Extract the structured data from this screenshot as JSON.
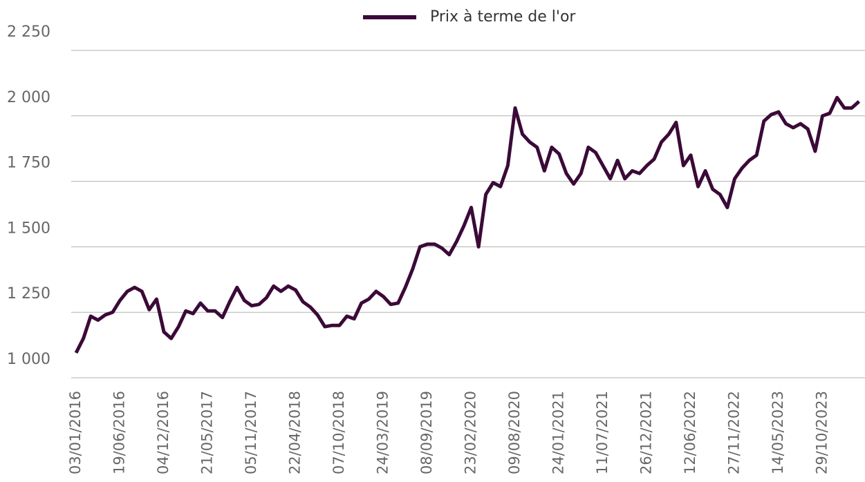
{
  "chart_data": {
    "type": "line",
    "categories": [
      "03/01/2016",
      null,
      null,
      null,
      null,
      null,
      "19/06/2016",
      null,
      null,
      null,
      null,
      null,
      "04/12/2016",
      null,
      null,
      null,
      null,
      null,
      "21/05/2017",
      null,
      null,
      null,
      null,
      null,
      "05/11/2017",
      null,
      null,
      null,
      null,
      null,
      "22/04/2018",
      null,
      null,
      null,
      null,
      null,
      "07/10/2018",
      null,
      null,
      null,
      null,
      null,
      "24/03/2019",
      null,
      null,
      null,
      null,
      null,
      "08/09/2019",
      null,
      null,
      null,
      null,
      null,
      "23/02/2020",
      null,
      null,
      null,
      null,
      null,
      "09/08/2020",
      null,
      null,
      null,
      null,
      null,
      "24/01/2021",
      null,
      null,
      null,
      null,
      null,
      "11/07/2021",
      null,
      null,
      null,
      null,
      null,
      "26/12/2021",
      null,
      null,
      null,
      null,
      null,
      "12/06/2022",
      null,
      null,
      null,
      null,
      null,
      "27/11/2022",
      null,
      null,
      null,
      null,
      null,
      "14/05/2023",
      null,
      null,
      null,
      null,
      null,
      "29/10/2023",
      null,
      null,
      null,
      null,
      null
    ],
    "series": [
      {
        "name": "Prix à terme de l'or",
        "color": "#3b0a38",
        "values": [
          1095,
          1150,
          1235,
          1220,
          1240,
          1250,
          1295,
          1330,
          1345,
          1330,
          1260,
          1300,
          1175,
          1150,
          1195,
          1255,
          1245,
          1285,
          1255,
          1255,
          1230,
          1290,
          1345,
          1295,
          1275,
          1280,
          1305,
          1350,
          1330,
          1350,
          1335,
          1290,
          1270,
          1240,
          1195,
          1200,
          1200,
          1235,
          1225,
          1285,
          1300,
          1330,
          1310,
          1280,
          1285,
          1345,
          1415,
          1500,
          1510,
          1510,
          1495,
          1470,
          1520,
          1580,
          1650,
          1500,
          1700,
          1745,
          1730,
          1810,
          2030,
          1930,
          1900,
          1880,
          1790,
          1880,
          1855,
          1780,
          1740,
          1780,
          1880,
          1860,
          1810,
          1760,
          1830,
          1760,
          1790,
          1780,
          1810,
          1835,
          1900,
          1930,
          1975,
          1810,
          1850,
          1730,
          1790,
          1720,
          1700,
          1650,
          1760,
          1800,
          1830,
          1850,
          1980,
          2005,
          2015,
          1970,
          1955,
          1970,
          1950,
          1865,
          2000,
          2010,
          2070,
          2030,
          2030,
          2055
        ]
      }
    ],
    "ylim": [
      1000,
      2250
    ],
    "yticks": [
      {
        "value": 1000,
        "label": "1 000"
      },
      {
        "value": 1250,
        "label": "1 250"
      },
      {
        "value": 1500,
        "label": "1 500"
      },
      {
        "value": 1750,
        "label": "1 750"
      },
      {
        "value": 2000,
        "label": "2 000"
      },
      {
        "value": 2250,
        "label": "2 250"
      }
    ],
    "grid": true,
    "legend": "top"
  }
}
